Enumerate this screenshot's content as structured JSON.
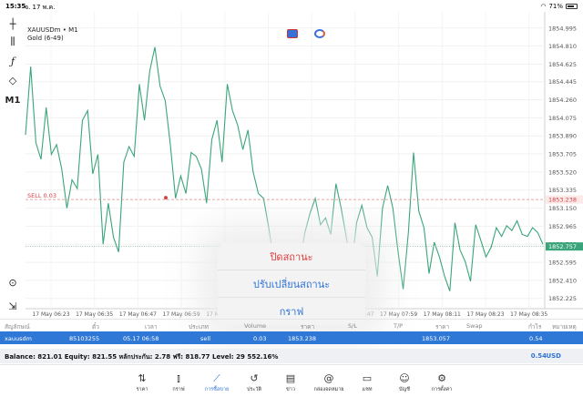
{
  "status_bar": {
    "time": "15:35",
    "date": " จ. 17 พ.ค.",
    "battery": "71%",
    "battery_level": 0.71
  },
  "symbol": {
    "name": "XAUUSDm • M1",
    "sub": "Gold (6-49)"
  },
  "toolbar": {
    "timeframe": "M1",
    "icons": [
      "crosshair-icon",
      "candles-icon",
      "function-icon",
      "shapes-icon",
      "timeframe-icon",
      "zoom-icon",
      "exit-icon"
    ]
  },
  "chart_data": {
    "type": "line",
    "color": "#3aa57a",
    "ylim": [
      1852.08,
      1854.95
    ],
    "y_ticks": [
      "1854.995",
      "1854.810",
      "1854.625",
      "1854.445",
      "1854.260",
      "1854.075",
      "1853.890",
      "1853.705",
      "1853.520",
      "1853.335",
      "1853.150",
      "1852.965",
      "1852.780",
      "1852.595",
      "1852.410",
      "1852.225"
    ],
    "x_ticks": [
      "17 May 06:23",
      "17 May 06:35",
      "17 May 06:47",
      "17 May 06:59",
      "17 May 07:11",
      "17 May 07:23",
      "17 May 07:35",
      "17 May 07:47",
      "17 May 07:59",
      "17 May 08:11",
      "17 May 08:23",
      "17 May 08:35"
    ],
    "values": [
      1853.9,
      1854.6,
      1853.82,
      1853.65,
      1854.18,
      1853.7,
      1853.8,
      1853.55,
      1853.15,
      1853.44,
      1853.35,
      1854.05,
      1854.15,
      1853.5,
      1853.7,
      1852.78,
      1853.2,
      1852.85,
      1852.7,
      1853.62,
      1853.78,
      1853.68,
      1854.42,
      1854.05,
      1854.55,
      1854.8,
      1854.4,
      1854.25,
      1853.8,
      1853.25,
      1853.48,
      1853.3,
      1853.72,
      1853.68,
      1853.55,
      1853.2,
      1853.85,
      1854.05,
      1853.62,
      1854.42,
      1854.15,
      1854.0,
      1853.75,
      1853.95,
      1853.52,
      1853.3,
      1853.25,
      1852.95,
      1852.6,
      1852.7,
      1852.63,
      1852.58,
      1852.15,
      1852.6,
      1852.9,
      1853.1,
      1853.25,
      1852.98,
      1853.05,
      1852.88,
      1853.4,
      1853.15,
      1852.85,
      1852.55,
      1853.0,
      1853.18,
      1852.95,
      1852.85,
      1852.45,
      1853.15,
      1853.38,
      1853.15,
      1852.7,
      1852.32,
      1852.9,
      1853.72,
      1853.12,
      1852.95,
      1852.48,
      1852.8,
      1852.65,
      1852.45,
      1852.3,
      1853.0,
      1852.72,
      1852.6,
      1852.4,
      1852.98,
      1852.82,
      1852.65,
      1852.75,
      1852.95,
      1852.86,
      1852.97,
      1852.92,
      1853.02,
      1852.88,
      1852.86,
      1852.95,
      1852.9,
      1852.78
    ],
    "sell_level": 1853.238,
    "sell_label": "SELL 0.03",
    "sell_tag": "1853.238",
    "bid_level": 1852.757,
    "bid_tag": "1852.757",
    "grid": true
  },
  "popup": {
    "options": [
      "ปิดสถานะ",
      "ปรับเปลี่ยนสถานะ",
      "กราฟ"
    ]
  },
  "table": {
    "headers": [
      "สัญลักษณ์",
      "ตั๋ว",
      "เวลา",
      "ประเภท",
      "Volume",
      "ราคา",
      "S/L",
      "T/P",
      "ราคา",
      "Swap",
      "กำไร",
      "หมายเหตุ"
    ],
    "row": [
      "xauusdm",
      "85103255",
      "05.17 06:58",
      "sell",
      "0.03",
      "1853.238",
      "1853.057",
      "0.54"
    ]
  },
  "balance": {
    "text": "Balance: 821.01 Equity: 821.55 หลักประกัน: 2.78 ฟรี: 818.77 Level: 29 552.16%",
    "value": "0.54",
    "currency": "USD"
  },
  "nav": [
    {
      "label": "ราคา",
      "icon": "quotes-icon"
    },
    {
      "label": "กราฟ",
      "icon": "chart-icon"
    },
    {
      "label": "การซื้อขาย",
      "icon": "trade-icon"
    },
    {
      "label": "ประวัติ",
      "icon": "history-icon"
    },
    {
      "label": "ข่าว",
      "icon": "news-icon"
    },
    {
      "label": "กล่องจดหมาย",
      "icon": "mailbox-icon"
    },
    {
      "label": "แชท",
      "icon": "chat-icon"
    },
    {
      "label": "บัญชี",
      "icon": "account-icon"
    },
    {
      "label": "การตั้งค่า",
      "icon": "settings-icon"
    }
  ]
}
